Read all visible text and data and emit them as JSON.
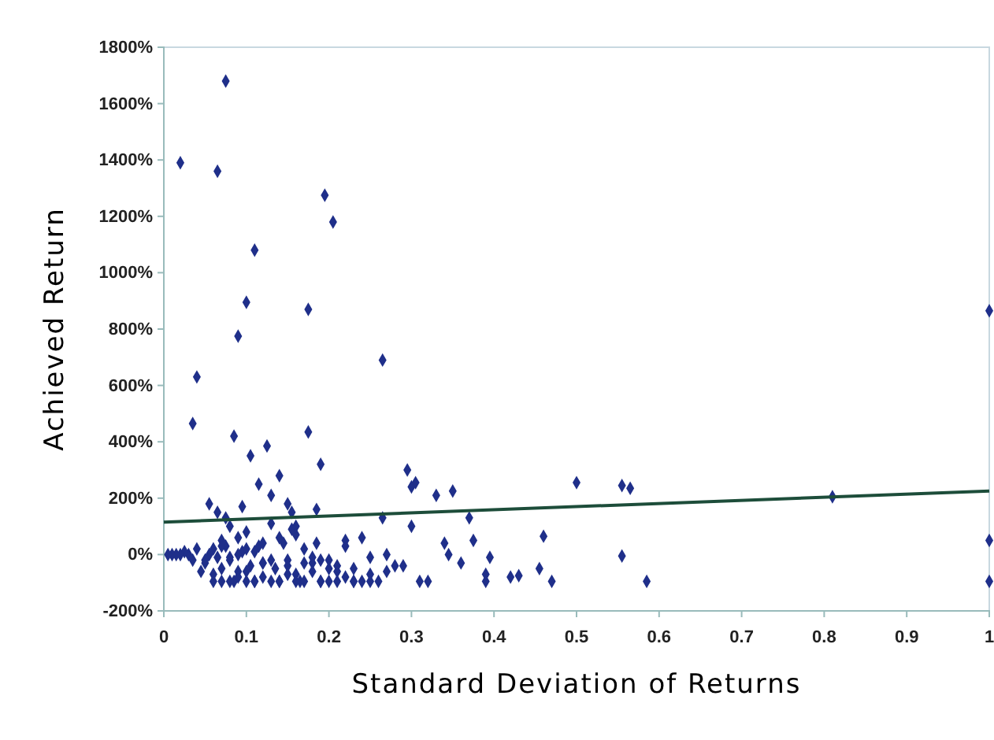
{
  "chart_data": {
    "type": "scatter",
    "xlabel": "Standard Deviation of Returns",
    "ylabel": "Achieved Return",
    "xlim": [
      0,
      1
    ],
    "ylim": [
      -200,
      1800
    ],
    "xticks": [
      0,
      0.1,
      0.2,
      0.3,
      0.4,
      0.5,
      0.6,
      0.7,
      0.8,
      0.9,
      1
    ],
    "yticks": [
      {
        "value": -200,
        "label": "-200%"
      },
      {
        "value": 0,
        "label": "0%"
      },
      {
        "value": 200,
        "label": "200%"
      },
      {
        "value": 400,
        "label": "400%"
      },
      {
        "value": 600,
        "label": "600%"
      },
      {
        "value": 800,
        "label": "800%"
      },
      {
        "value": 1000,
        "label": "1000%"
      },
      {
        "value": 1200,
        "label": "1200%"
      },
      {
        "value": 1400,
        "label": "1400%"
      },
      {
        "value": 1600,
        "label": "1600%"
      },
      {
        "value": 1800,
        "label": "1800%"
      }
    ],
    "grid": false,
    "series": [
      {
        "color": "#1f2f8a",
        "marker": "diamond",
        "x": [
          0.075,
          0.02,
          0.065,
          0.195,
          0.205,
          0.11,
          0.1,
          0.175,
          0.09,
          0.265,
          0.04,
          0.035,
          0.085,
          0.175,
          0.125,
          1.0,
          0.81,
          1.0,
          1.0,
          0.5,
          0.555,
          0.565,
          0.585,
          0.555,
          0.46,
          0.47,
          0.455,
          0.43,
          0.42,
          0.395,
          0.39,
          0.375,
          0.37,
          0.35,
          0.305,
          0.295,
          0.34,
          0.345,
          0.32,
          0.31,
          0.3,
          0.265,
          0.28,
          0.27,
          0.25,
          0.24,
          0.23,
          0.22,
          0.21,
          0.2,
          0.19,
          0.185,
          0.18,
          0.17,
          0.165,
          0.16,
          0.155,
          0.15,
          0.145,
          0.14,
          0.135,
          0.13,
          0.12,
          0.115,
          0.11,
          0.105,
          0.1,
          0.095,
          0.09,
          0.085,
          0.08,
          0.075,
          0.07,
          0.065,
          0.06,
          0.055,
          0.05,
          0.045,
          0.04,
          0.035,
          0.03,
          0.025,
          0.02,
          0.015,
          0.01,
          0.005,
          0.06,
          0.07,
          0.08,
          0.09,
          0.1,
          0.11,
          0.12,
          0.13,
          0.14,
          0.15,
          0.16,
          0.17,
          0.18,
          0.19,
          0.2,
          0.21,
          0.22,
          0.23,
          0.24,
          0.25,
          0.26,
          0.07,
          0.08,
          0.09,
          0.1,
          0.12,
          0.14,
          0.16,
          0.18,
          0.2,
          0.22,
          0.05,
          0.06,
          0.07,
          0.08,
          0.09,
          0.1,
          0.11,
          0.12,
          0.13,
          0.15,
          0.17,
          0.19,
          0.21,
          0.23,
          0.25,
          0.27,
          0.29,
          0.055,
          0.065,
          0.075,
          0.13,
          0.15,
          0.185,
          0.19,
          0.14,
          0.16,
          0.115,
          0.095,
          0.105,
          0.155,
          0.3,
          0.33,
          0.36,
          0.39
        ],
        "values": [
          1680,
          1390,
          1360,
          1275,
          1180,
          1080,
          895,
          870,
          775,
          690,
          630,
          465,
          420,
          435,
          385,
          865,
          205,
          50,
          -95,
          255,
          245,
          235,
          -95,
          -5,
          65,
          -95,
          -50,
          -75,
          -80,
          -10,
          -95,
          50,
          130,
          225,
          255,
          300,
          40,
          0,
          -95,
          -95,
          100,
          130,
          -40,
          0,
          -95,
          60,
          -95,
          30,
          -60,
          -95,
          -95,
          40,
          -30,
          20,
          -95,
          -70,
          90,
          -20,
          40,
          -95,
          -50,
          110,
          -80,
          30,
          -95,
          -40,
          -95,
          10,
          -60,
          -95,
          -20,
          30,
          -95,
          -10,
          -95,
          0,
          -30,
          -60,
          20,
          -20,
          0,
          10,
          0,
          0,
          0,
          0,
          -70,
          -50,
          -95,
          -80,
          -60,
          -95,
          -30,
          -95,
          -95,
          -70,
          -95,
          -95,
          -60,
          -95,
          -50,
          -95,
          -80,
          -95,
          -95,
          -70,
          -95,
          50,
          100,
          60,
          80,
          40,
          60,
          70,
          -10,
          -20,
          50,
          -20,
          20,
          30,
          -10,
          0,
          20,
          10,
          -30,
          -20,
          -40,
          -30,
          -20,
          -40,
          -50,
          -10,
          -60,
          -40,
          180,
          150,
          130,
          210,
          180,
          160,
          320,
          280,
          100,
          250,
          170,
          350,
          150,
          240,
          210,
          -30,
          -70
        ]
      },
      {
        "type": "line",
        "color": "#1d4d3a",
        "x": [
          0,
          1
        ],
        "values": [
          115,
          225
        ]
      }
    ]
  }
}
